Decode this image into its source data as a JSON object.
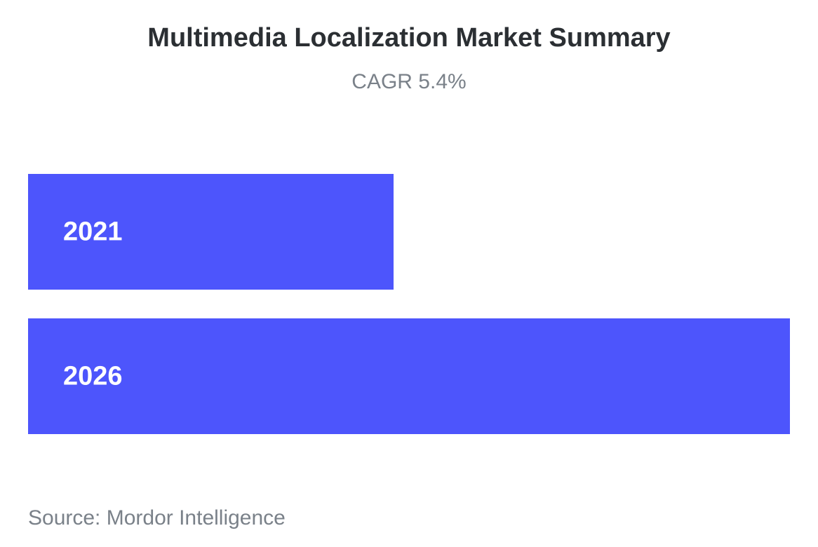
{
  "chart_data": {
    "type": "bar",
    "orientation": "horizontal",
    "title": "Multimedia Localization Market Summary",
    "subtitle": "CAGR 5.4%",
    "categories": [
      "2021",
      "2026"
    ],
    "values": [
      0.48,
      1.0
    ],
    "value_axis_shown": false,
    "grid": false,
    "legend": "none",
    "bar_color": "#4d55fc",
    "label_color": "#ffffff"
  },
  "footer": {
    "source": "Source: Mordor Intelligence"
  },
  "colors": {
    "title": "#2b2f33",
    "muted": "#7a8189",
    "background": "#ffffff"
  }
}
